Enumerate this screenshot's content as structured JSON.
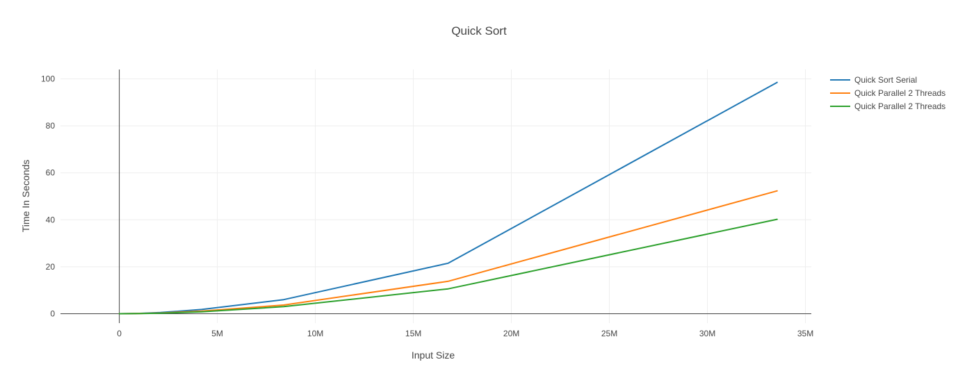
{
  "chart_data": {
    "type": "line",
    "title": "Quick Sort",
    "xlabel": "Input Size",
    "ylabel": "Time In Seconds",
    "xlim": [
      -3000000,
      35300000
    ],
    "ylim": [
      -4,
      104
    ],
    "xticks": [
      {
        "value": 0,
        "label": "0"
      },
      {
        "value": 5000000,
        "label": "5M"
      },
      {
        "value": 10000000,
        "label": "10M"
      },
      {
        "value": 15000000,
        "label": "15M"
      },
      {
        "value": 20000000,
        "label": "20M"
      },
      {
        "value": 25000000,
        "label": "25M"
      },
      {
        "value": 30000000,
        "label": "30M"
      },
      {
        "value": 35000000,
        "label": "35M"
      }
    ],
    "yticks": [
      {
        "value": 0,
        "label": "0"
      },
      {
        "value": 20,
        "label": "20"
      },
      {
        "value": 40,
        "label": "40"
      },
      {
        "value": 60,
        "label": "60"
      },
      {
        "value": 80,
        "label": "80"
      },
      {
        "value": 100,
        "label": "100"
      }
    ],
    "grid": true,
    "legend_position": "top-right",
    "x": [
      0,
      1048576,
      2097152,
      4194304,
      8388608,
      16777216,
      33554432
    ],
    "series": [
      {
        "name": "Quick Sort Serial",
        "color": "#1f77b4",
        "values": [
          0,
          0.15,
          0.5,
          1.8,
          6.0,
          21.5,
          98.5
        ]
      },
      {
        "name": "Quick Parallel 2 Threads",
        "color": "#ff7f0e",
        "values": [
          0,
          0.1,
          0.3,
          1.1,
          3.7,
          13.8,
          52.3
        ]
      },
      {
        "name": "Quick Parallel 2 Threads",
        "color": "#2ca02c",
        "values": [
          0,
          0.08,
          0.2,
          0.8,
          3.0,
          10.6,
          40.2
        ]
      }
    ]
  }
}
